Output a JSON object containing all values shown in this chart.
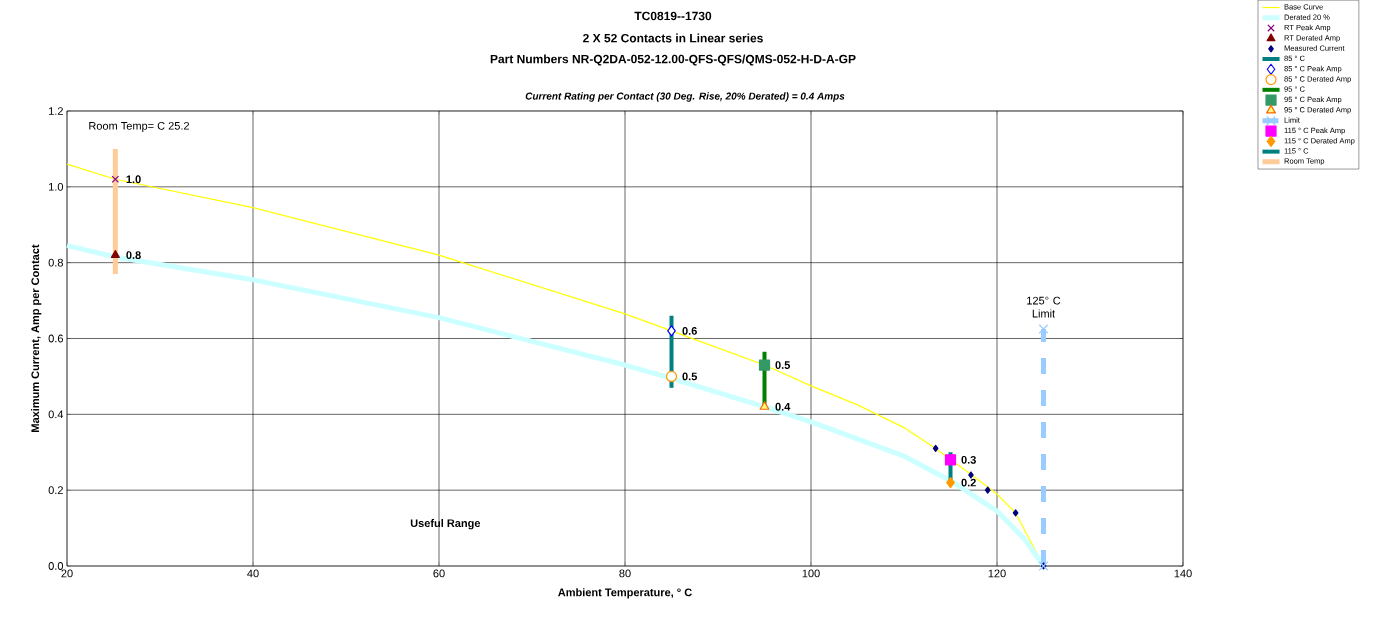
{
  "chart_data": {
    "type": "line",
    "title": "TC0819--1730",
    "subtitle": "2 X 52 Contacts in Linear series",
    "xlabel": "Ambient Temperature,  ° C",
    "ylabel": "Maximum Current, Amp per Contact",
    "annotations": [
      "Part Numbers NR-Q2DA-052-12.00-QFS-QFS/QMS-052-H-D-A-GP",
      "Current Rating per Contact (30 Deg. Rise, 20% Derated)  = 0.4 Amps",
      "Room Temp=  C 25.2",
      {
        "text": "125° C Limit",
        "x": 125,
        "y": 0.625
      },
      "Useful    Range"
    ],
    "xlim": [
      20,
      140
    ],
    "ylim": [
      0,
      1.2
    ],
    "xticks": [
      20,
      40,
      60,
      80,
      100,
      120,
      140
    ],
    "yticks": [
      {
        "value": 0,
        "label": "0.0"
      },
      {
        "value": 0.2,
        "label": "0.2"
      },
      {
        "value": 0.4,
        "label": "0.4"
      },
      {
        "value": 0.6,
        "label": "0.6"
      },
      {
        "value": 0.8,
        "label": "0.8"
      },
      {
        "value": 1.0,
        "label": "1.0"
      },
      {
        "value": 1.2,
        "label": "1.2"
      }
    ],
    "grid": true,
    "legend": "top right",
    "series": [
      {
        "name": "Base Curve",
        "color": "#ffff00",
        "marker": "none",
        "x": [
          20,
          25.2,
          40,
          60,
          80,
          85,
          95,
          100,
          105,
          110,
          113.4,
          117,
          120,
          122,
          125
        ],
        "values": [
          1.06,
          1.02,
          0.945,
          0.82,
          0.665,
          0.62,
          0.53,
          0.475,
          0.425,
          0.365,
          0.31,
          0.245,
          0.19,
          0.14,
          0
        ]
      },
      {
        "name": "Derated 20 %",
        "color": "#ccffff",
        "marker": "none",
        "x": [
          20,
          25.2,
          40,
          60,
          80,
          85,
          95,
          100,
          110,
          115,
          120,
          123,
          125
        ],
        "values": [
          0.845,
          0.815,
          0.755,
          0.655,
          0.53,
          0.495,
          0.42,
          0.38,
          0.29,
          0.225,
          0.145,
          0.07,
          0
        ]
      },
      {
        "name": "RT Peak Amp",
        "color": "#800080",
        "type": "scatter",
        "marker": "cross",
        "x": [
          25.2
        ],
        "values": [
          1.02
        ],
        "value_labels": [
          "1.0"
        ]
      },
      {
        "name": "RT Derated Amp",
        "color": "#800000",
        "type": "scatter",
        "marker": "triangle",
        "x": [
          25.2
        ],
        "values": [
          0.82
        ],
        "value_labels": [
          "0.8"
        ]
      },
      {
        "name": "Measured Current",
        "color": "#000080",
        "type": "scatter",
        "marker": "diamond",
        "x": [
          113.4,
          117.2,
          119,
          122,
          125
        ],
        "values": [
          0.31,
          0.24,
          0.2,
          0.14,
          0
        ]
      },
      {
        "name": "85 ° C",
        "color": "#008080",
        "type": "line",
        "marker": "none",
        "x": [
          85,
          85
        ],
        "values": [
          0.47,
          0.66
        ]
      },
      {
        "name": "85  ° C Peak Amp",
        "color": "#0000ff",
        "type": "scatter",
        "marker": "diamond",
        "x": [
          85
        ],
        "values": [
          0.62
        ],
        "value_labels": [
          "0.6"
        ]
      },
      {
        "name": "85  ° C Derated Amp",
        "color": "#ff9900",
        "type": "scatter",
        "marker": "circle",
        "x": [
          85
        ],
        "values": [
          0.5
        ],
        "value_labels": [
          "0.5"
        ]
      },
      {
        "name": "95  ° C",
        "color": "#008000",
        "type": "line",
        "marker": "none",
        "x": [
          95,
          95
        ],
        "values": [
          0.42,
          0.565
        ]
      },
      {
        "name": "95  ° C Peak Amp",
        "color": "#339966",
        "type": "scatter",
        "marker": "square",
        "x": [
          95
        ],
        "values": [
          0.53
        ],
        "value_labels": [
          "0.5"
        ]
      },
      {
        "name": "95  ° C Derated Amp",
        "color": "#ff6600",
        "type": "scatter",
        "marker": "triangle",
        "x": [
          95
        ],
        "values": [
          0.42
        ],
        "value_labels": [
          "0.4"
        ]
      },
      {
        "name": "Limit",
        "color": "#99ccff",
        "type": "line",
        "marker": "cross",
        "line_style": "dashed",
        "x": [
          125,
          125
        ],
        "values": [
          0,
          0.625
        ]
      },
      {
        "name": "115  ° C Peak Amp",
        "color": "#ff00ff",
        "type": "scatter",
        "marker": "square",
        "x": [
          115
        ],
        "values": [
          0.28
        ],
        "value_labels": [
          "0.3"
        ]
      },
      {
        "name": "115  ° C Derated Amp",
        "color": "#ff9900",
        "type": "scatter",
        "marker": "diamond",
        "x": [
          115
        ],
        "values": [
          0.22
        ],
        "value_labels": [
          "0.2"
        ]
      },
      {
        "name": "115  ° C",
        "color": "#008080",
        "type": "line",
        "marker": "none",
        "x": [
          115,
          115
        ],
        "values": [
          0.22,
          0.3
        ]
      },
      {
        "name": "Room Temp",
        "color": "#ffcc99",
        "type": "line",
        "marker": "none",
        "x": [
          25.2,
          25.2
        ],
        "values": [
          0.77,
          1.1
        ]
      }
    ]
  }
}
